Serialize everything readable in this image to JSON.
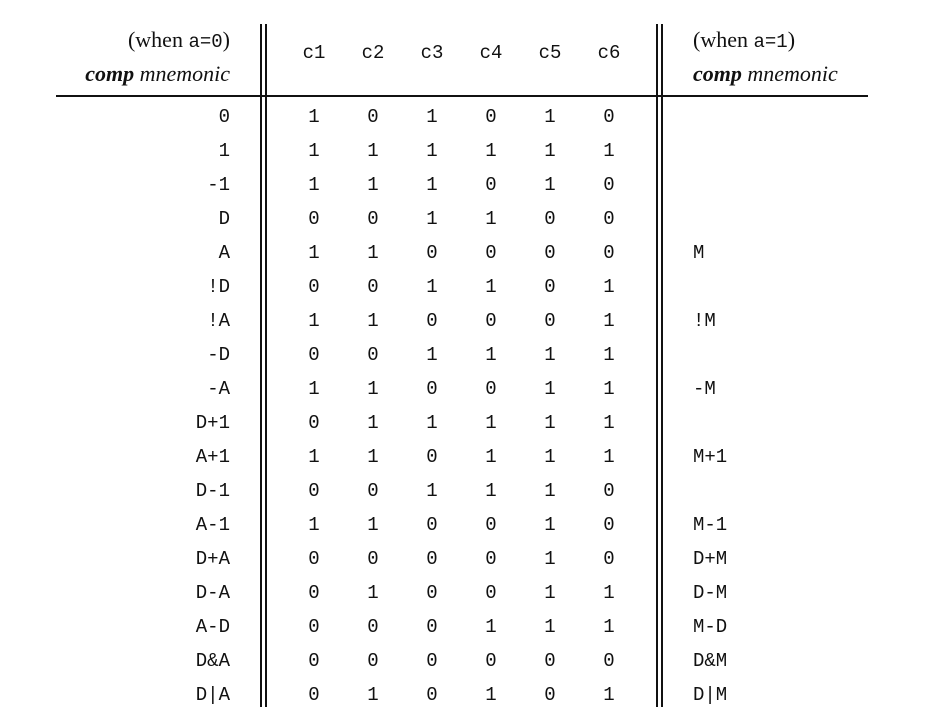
{
  "header_left": {
    "when_open": "(when ",
    "a_expr": "a=0",
    "when_close": ")",
    "comp": "comp",
    "mnemonic": " mnemonic"
  },
  "header_right": {
    "when_open": "(when ",
    "a_expr": "a=1",
    "when_close": ")",
    "comp": "comp",
    "mnemonic": " mnemonic"
  },
  "columns": [
    "c1",
    "c2",
    "c3",
    "c4",
    "c5",
    "c6"
  ],
  "rows": [
    {
      "left": "0",
      "bits": [
        "1",
        "0",
        "1",
        "0",
        "1",
        "0"
      ],
      "right": ""
    },
    {
      "left": "1",
      "bits": [
        "1",
        "1",
        "1",
        "1",
        "1",
        "1"
      ],
      "right": ""
    },
    {
      "left": "-1",
      "bits": [
        "1",
        "1",
        "1",
        "0",
        "1",
        "0"
      ],
      "right": ""
    },
    {
      "left": "D",
      "bits": [
        "0",
        "0",
        "1",
        "1",
        "0",
        "0"
      ],
      "right": ""
    },
    {
      "left": "A",
      "bits": [
        "1",
        "1",
        "0",
        "0",
        "0",
        "0"
      ],
      "right": "M"
    },
    {
      "left": "!D",
      "bits": [
        "0",
        "0",
        "1",
        "1",
        "0",
        "1"
      ],
      "right": ""
    },
    {
      "left": "!A",
      "bits": [
        "1",
        "1",
        "0",
        "0",
        "0",
        "1"
      ],
      "right": "!M"
    },
    {
      "left": "-D",
      "bits": [
        "0",
        "0",
        "1",
        "1",
        "1",
        "1"
      ],
      "right": ""
    },
    {
      "left": "-A",
      "bits": [
        "1",
        "1",
        "0",
        "0",
        "1",
        "1"
      ],
      "right": "-M"
    },
    {
      "left": "D+1",
      "bits": [
        "0",
        "1",
        "1",
        "1",
        "1",
        "1"
      ],
      "right": ""
    },
    {
      "left": "A+1",
      "bits": [
        "1",
        "1",
        "0",
        "1",
        "1",
        "1"
      ],
      "right": "M+1"
    },
    {
      "left": "D-1",
      "bits": [
        "0",
        "0",
        "1",
        "1",
        "1",
        "0"
      ],
      "right": ""
    },
    {
      "left": "A-1",
      "bits": [
        "1",
        "1",
        "0",
        "0",
        "1",
        "0"
      ],
      "right": "M-1"
    },
    {
      "left": "D+A",
      "bits": [
        "0",
        "0",
        "0",
        "0",
        "1",
        "0"
      ],
      "right": "D+M"
    },
    {
      "left": "D-A",
      "bits": [
        "0",
        "1",
        "0",
        "0",
        "1",
        "1"
      ],
      "right": "D-M"
    },
    {
      "left": "A-D",
      "bits": [
        "0",
        "0",
        "0",
        "1",
        "1",
        "1"
      ],
      "right": "M-D"
    },
    {
      "left": "D&A",
      "bits": [
        "0",
        "0",
        "0",
        "0",
        "0",
        "0"
      ],
      "right": "D&M"
    },
    {
      "left": "D|A",
      "bits": [
        "0",
        "1",
        "0",
        "1",
        "0",
        "1"
      ],
      "right": "D|M"
    }
  ]
}
